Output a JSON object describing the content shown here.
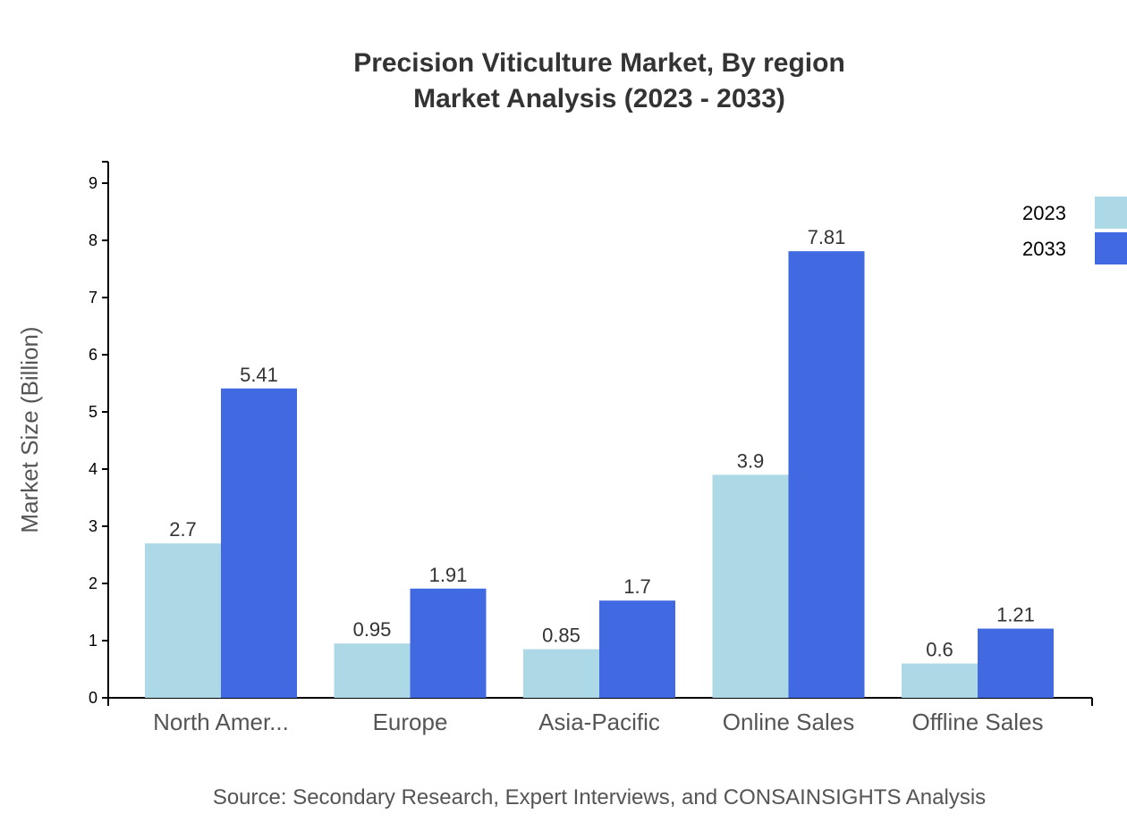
{
  "chart_data": {
    "type": "bar",
    "title": "Precision Viticulture Market, By region",
    "subtitle": "Market Analysis (2023 - 2033)",
    "xlabel": "",
    "ylabel": "Market Size (Billion)",
    "categories": [
      "North Amer...",
      "Europe",
      "Asia-Pacific",
      "Online Sales",
      "Offline Sales"
    ],
    "series": [
      {
        "name": "2023",
        "color": "#ADD8E6",
        "values": [
          2.7,
          0.95,
          0.85,
          3.9,
          0.6
        ]
      },
      {
        "name": "2033",
        "color": "#4169E1",
        "values": [
          5.41,
          1.91,
          1.7,
          7.81,
          1.21
        ]
      }
    ],
    "ylim": [
      0,
      9.375
    ],
    "yticks": [
      0,
      1,
      2,
      3,
      4,
      5,
      6,
      7,
      8,
      9
    ],
    "grid": false,
    "legend": "top-right"
  },
  "source": "Source: Secondary Research, Expert Interviews, and CONSAINSIGHTS Analysis"
}
